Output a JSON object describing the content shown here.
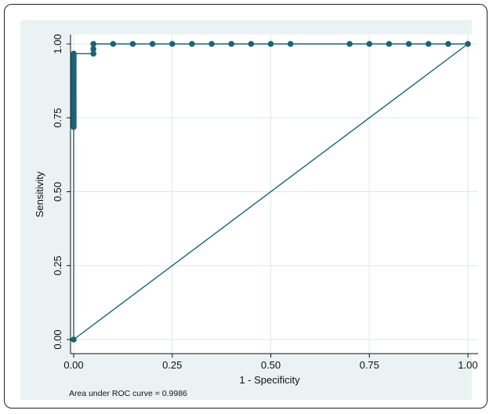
{
  "chart_data": {
    "type": "scatter",
    "title": "",
    "xlabel": "1 - Specificity",
    "ylabel": "Sensitivity",
    "xlim": [
      0,
      1
    ],
    "ylim": [
      0,
      1
    ],
    "xticks": [
      "0.00",
      "0.25",
      "0.50",
      "0.75",
      "1.00"
    ],
    "yticks": [
      "0.00",
      "0.25",
      "0.50",
      "0.75",
      "1.00"
    ],
    "grid": true,
    "colors": {
      "series": "#1a6378",
      "background": "#eaf2f3",
      "plot_area": "#ffffff",
      "grid": "#dce7ea"
    },
    "series": [
      {
        "style": "line-markers",
        "points": [
          [
            0.0,
            0.0
          ],
          [
            0.0,
            0.719
          ],
          [
            0.0,
            0.727
          ],
          [
            0.0,
            0.735
          ],
          [
            0.0,
            0.743
          ],
          [
            0.0,
            0.751
          ],
          [
            0.0,
            0.759
          ],
          [
            0.0,
            0.767
          ],
          [
            0.0,
            0.775
          ],
          [
            0.0,
            0.783
          ],
          [
            0.0,
            0.791
          ],
          [
            0.0,
            0.799
          ],
          [
            0.0,
            0.807
          ],
          [
            0.0,
            0.815
          ],
          [
            0.0,
            0.823
          ],
          [
            0.0,
            0.831
          ],
          [
            0.0,
            0.839
          ],
          [
            0.0,
            0.847
          ],
          [
            0.0,
            0.855
          ],
          [
            0.0,
            0.863
          ],
          [
            0.0,
            0.871
          ],
          [
            0.0,
            0.879
          ],
          [
            0.0,
            0.887
          ],
          [
            0.0,
            0.895
          ],
          [
            0.0,
            0.903
          ],
          [
            0.0,
            0.911
          ],
          [
            0.0,
            0.919
          ],
          [
            0.0,
            0.927
          ],
          [
            0.0,
            0.935
          ],
          [
            0.0,
            0.943
          ],
          [
            0.0,
            0.951
          ],
          [
            0.0,
            0.959
          ],
          [
            0.0,
            0.967
          ],
          [
            0.05,
            0.967
          ],
          [
            0.05,
            0.983
          ],
          [
            0.05,
            1.0
          ],
          [
            0.1,
            1.0
          ],
          [
            0.15,
            1.0
          ],
          [
            0.2,
            1.0
          ],
          [
            0.25,
            1.0
          ],
          [
            0.3,
            1.0
          ],
          [
            0.35,
            1.0
          ],
          [
            0.4,
            1.0
          ],
          [
            0.45,
            1.0
          ],
          [
            0.5,
            1.0
          ],
          [
            0.55,
            1.0
          ],
          [
            0.7,
            1.0
          ],
          [
            0.75,
            1.0
          ],
          [
            0.8,
            1.0
          ],
          [
            0.85,
            1.0
          ],
          [
            0.9,
            1.0
          ],
          [
            0.95,
            1.0
          ],
          [
            1.0,
            1.0
          ]
        ]
      },
      {
        "style": "line",
        "points": [
          [
            0,
            0
          ],
          [
            1,
            1
          ]
        ]
      }
    ],
    "annotations": [
      "Area under ROC curve = 0.9986"
    ]
  }
}
